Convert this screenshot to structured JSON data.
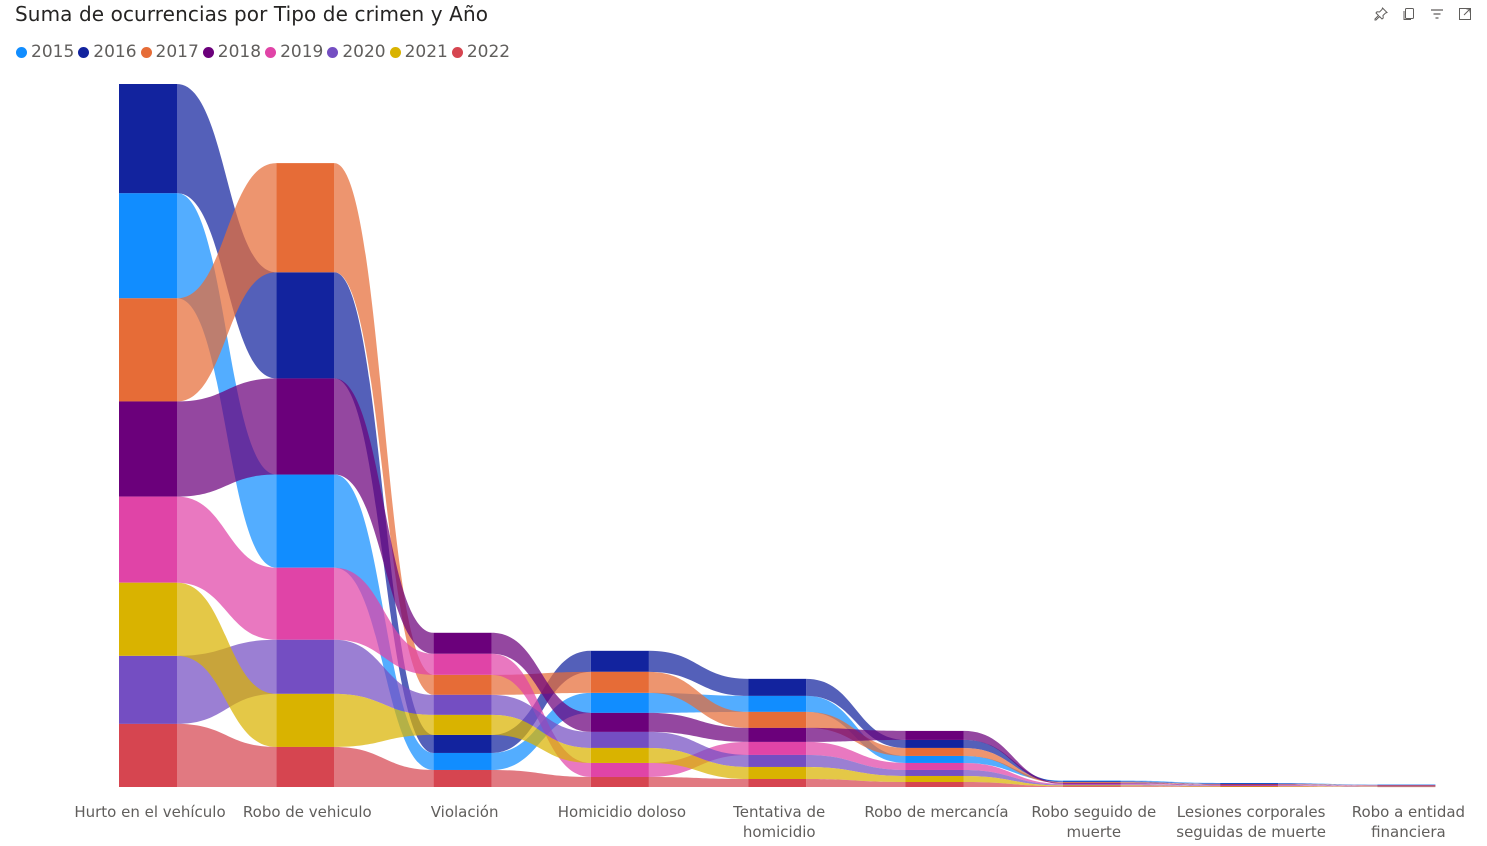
{
  "header": {
    "title": "Suma de ocurrencias por Tipo de crimen y Año",
    "toolbar": [
      {
        "name": "pin-icon"
      },
      {
        "name": "copy-icon"
      },
      {
        "name": "filter-icon"
      },
      {
        "name": "focus-mode-icon"
      }
    ]
  },
  "chart_data": {
    "type": "ribbon",
    "title": "Suma de ocurrencias por Tipo de crimen y Año",
    "categories": [
      "Hurto en el vehículo",
      "Robo de vehiculo",
      "Violación",
      "Homicidio doloso",
      "Tentativa de homicidio",
      "Robo de mercancía",
      "Robo seguido de muerte",
      "Lesiones corporales seguidas de muerte",
      "Robo a entidad financiera"
    ],
    "category_labels": [
      [
        "Hurto en el vehículo"
      ],
      [
        "Robo de vehiculo"
      ],
      [
        "Violación"
      ],
      [
        "Homicidio doloso"
      ],
      [
        "Tentativa de",
        "homicidio"
      ],
      [
        "Robo de mercancía"
      ],
      [
        "Robo seguido de",
        "muerte"
      ],
      [
        "Lesiones corporales",
        "seguidas de muerte"
      ],
      [
        "Robo a entidad",
        "financiera"
      ]
    ],
    "series": [
      {
        "name": "2015",
        "color": "#118DFF",
        "values": [
          105,
          93,
          17,
          20,
          16,
          7,
          0.8,
          0.5,
          0.3
        ]
      },
      {
        "name": "2016",
        "color": "#12239E",
        "values": [
          109,
          106,
          18,
          21,
          17,
          8,
          0.8,
          0.5,
          0.3
        ]
      },
      {
        "name": "2017",
        "color": "#E66C37",
        "values": [
          103,
          109,
          20,
          21,
          16,
          8,
          0.8,
          0.5,
          0.3
        ]
      },
      {
        "name": "2018",
        "color": "#6B007B",
        "values": [
          95,
          96,
          21,
          19,
          14,
          9,
          0.8,
          0.5,
          0.3
        ]
      },
      {
        "name": "2019",
        "color": "#E044A7",
        "values": [
          86,
          72,
          21,
          14,
          13,
          7,
          0.8,
          0.5,
          0.3
        ]
      },
      {
        "name": "2020",
        "color": "#744EC2",
        "values": [
          68,
          54,
          20,
          16,
          12,
          6,
          0.8,
          0.5,
          0.3
        ]
      },
      {
        "name": "2021",
        "color": "#D9B300",
        "values": [
          73,
          53,
          20,
          15,
          12,
          6,
          0.8,
          0.5,
          0.3
        ]
      },
      {
        "name": "2022",
        "color": "#D64550",
        "values": [
          63,
          40,
          17,
          10,
          8,
          5,
          0.8,
          0.5,
          0.3
        ]
      }
    ],
    "legend_position": "top-left",
    "grid": false
  }
}
